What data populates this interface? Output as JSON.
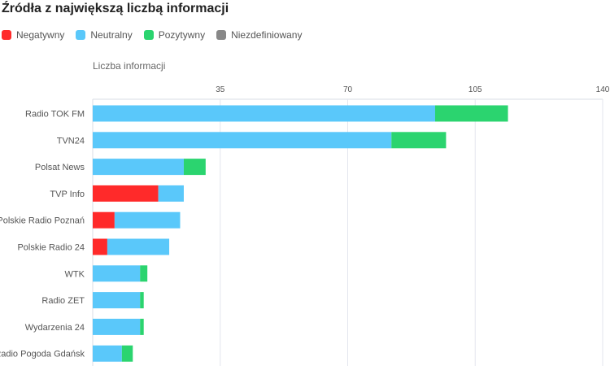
{
  "chart_data": {
    "type": "bar",
    "orientation": "horizontal",
    "stacked": true,
    "title": "Źródła z największą liczbą informacji",
    "xlabel": "Liczba informacji",
    "ylabel": "",
    "xlim": [
      0,
      140
    ],
    "ticks": [
      35,
      70,
      105,
      140
    ],
    "grid": true,
    "legend_position": "top-left",
    "categories": [
      "Radio TOK FM",
      "TVN24",
      "Polsat News",
      "TVP Info",
      "Polskie Radio Poznań",
      "Polskie Radio 24",
      "WTK",
      "Radio ZET",
      "Wydarzenia 24",
      "Radio Pogoda Gdańsk"
    ],
    "series": [
      {
        "name": "Negatywny",
        "color": "#ff2a2a",
        "values": [
          0,
          0,
          0,
          18,
          6,
          4,
          0,
          0,
          0,
          0
        ]
      },
      {
        "name": "Neutralny",
        "color": "#5ac8fa",
        "values": [
          94,
          82,
          25,
          7,
          18,
          17,
          13,
          13,
          13,
          8
        ]
      },
      {
        "name": "Pozytywny",
        "color": "#2bd46f",
        "values": [
          20,
          15,
          6,
          0,
          0,
          0,
          2,
          1,
          1,
          3
        ]
      },
      {
        "name": "Niezdefiniowany",
        "color": "#888888",
        "values": [
          0,
          0,
          0,
          0,
          0,
          0,
          0,
          0,
          0,
          0
        ]
      }
    ]
  }
}
